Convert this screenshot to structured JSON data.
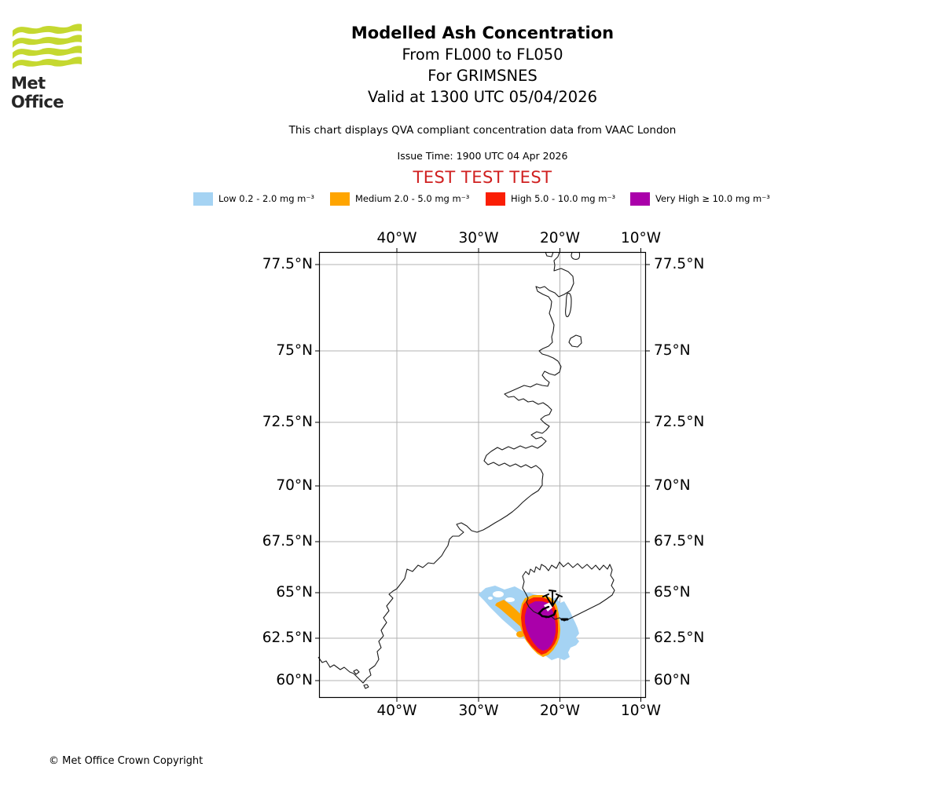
{
  "header": {
    "logo_text": "Met Office",
    "title": "Modelled Ash Concentration",
    "subtitle_flight_levels": "From FL000 to FL050",
    "subtitle_volcano": "For GRIMSNES",
    "subtitle_valid": "Valid at 1300 UTC 05/04/2026",
    "compliance_note": "This chart displays QVA compliant concentration data from VAAC London",
    "issue_time": "Issue Time: 1900 UTC 04 Apr 2026",
    "test_banner": "TEST TEST TEST",
    "test_banner_color": "#D02020"
  },
  "legend": {
    "items": [
      {
        "id": "low",
        "label": "Low 0.2 - 2.0 mg m⁻³",
        "color": "#A5D3F3"
      },
      {
        "id": "medium",
        "label": "Medium 2.0 - 5.0 mg m⁻³",
        "color": "#FFA500"
      },
      {
        "id": "high",
        "label": "High 5.0 - 10.0 mg m⁻³",
        "color": "#FA1E05"
      },
      {
        "id": "very_high",
        "label": "Very High ≥ 10.0 mg m⁻³",
        "color": "#AA00AA"
      }
    ]
  },
  "map": {
    "x_tick_labels": [
      "40°W",
      "30°W",
      "20°W",
      "10°W"
    ],
    "y_tick_labels": [
      "77.5°N",
      "75°N",
      "72.5°N",
      "70°N",
      "67.5°N",
      "65°N",
      "62.5°N",
      "60°N"
    ]
  },
  "footer": {
    "copyright": "© Met Office Crown Copyright"
  },
  "chart_data": {
    "type": "map_contour",
    "title": "Modelled Ash Concentration",
    "projection": "mercator",
    "grid": true,
    "legend_position": "top",
    "x_axis": {
      "label": "longitude",
      "ticks": [
        "40°W",
        "30°W",
        "20°W",
        "10°W"
      ],
      "range_deg": [
        -49.5,
        -9.4
      ]
    },
    "y_axis": {
      "label": "latitude",
      "ticks": [
        "77.5°N",
        "75°N",
        "72.5°N",
        "70°N",
        "67.5°N",
        "65°N",
        "62.5°N",
        "60°N"
      ],
      "range_deg": [
        59.3,
        77.9
      ]
    },
    "series": [
      {
        "name": "Low 0.2 - 2.0 mg m⁻³",
        "threshold_mg_m3": [
          0.2,
          2.0
        ],
        "color": "#A5D3F3",
        "approx_lon_deg": [
          -30.0,
          -17.6
        ],
        "approx_lat_deg": [
          61.2,
          65.4
        ]
      },
      {
        "name": "Medium 2.0 - 5.0 mg m⁻³",
        "threshold_mg_m3": [
          2.0,
          5.0
        ],
        "color": "#FFA500",
        "approx_lon_deg": [
          -27.8,
          -19.9
        ],
        "approx_lat_deg": [
          61.5,
          64.9
        ]
      },
      {
        "name": "High 5.0 - 10.0 mg m⁻³",
        "threshold_mg_m3": [
          5.0,
          10.0
        ],
        "color": "#FA1E05",
        "approx_lon_deg": [
          -24.8,
          -20.2
        ],
        "approx_lat_deg": [
          61.5,
          64.8
        ]
      },
      {
        "name": "Very High ≥ 10.0 mg m⁻³",
        "threshold_mg_m3": [
          10.0,
          null
        ],
        "color": "#AA00AA",
        "approx_lon_deg": [
          -24.3,
          -20.5
        ],
        "approx_lat_deg": [
          61.7,
          64.6
        ]
      }
    ],
    "volcano": {
      "name": "GRIMSNES",
      "approx_lon_deg": -20.9,
      "approx_lat_deg": 64.1
    },
    "flight_levels": "FL000-FL050",
    "valid_time": "1300 UTC 05/04/2026",
    "issue_time": "1900 UTC 04 Apr 2026",
    "source": "VAAC London"
  }
}
